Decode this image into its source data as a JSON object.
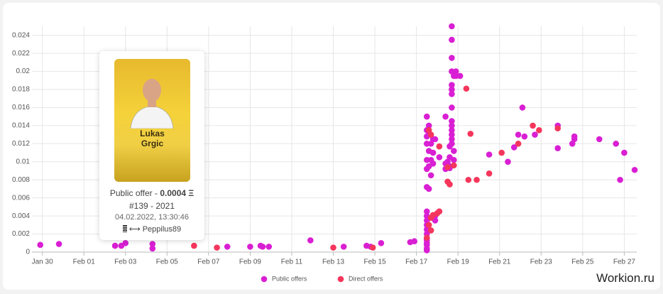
{
  "chart_data": {
    "type": "scatter",
    "xlim": [
      -0.5,
      28.6
    ],
    "ylim": [
      0,
      0.025
    ],
    "xticks": [
      {
        "value": 0,
        "label": "Jan 30"
      },
      {
        "value": 2,
        "label": "Feb 01"
      },
      {
        "value": 4,
        "label": "Feb 03"
      },
      {
        "value": 6,
        "label": "Feb 05"
      },
      {
        "value": 8,
        "label": "Feb 07"
      },
      {
        "value": 10,
        "label": "Feb 09"
      },
      {
        "value": 12,
        "label": "Feb 11"
      },
      {
        "value": 14,
        "label": "Feb 13"
      },
      {
        "value": 16,
        "label": "Feb 15"
      },
      {
        "value": 18,
        "label": "Feb 17"
      },
      {
        "value": 20,
        "label": "Feb 19"
      },
      {
        "value": 22,
        "label": "Feb 21"
      },
      {
        "value": 24,
        "label": "Feb 23"
      },
      {
        "value": 26,
        "label": "Feb 25"
      },
      {
        "value": 28,
        "label": "Feb 27"
      }
    ],
    "yticks": [
      0,
      0.002,
      0.004,
      0.006,
      0.008,
      0.01,
      0.012,
      0.014,
      0.016,
      0.018,
      0.02,
      0.022,
      0.024
    ],
    "grid": true,
    "legend": "bottom",
    "series": [
      {
        "name": "Public offers",
        "color": "#d91fd3",
        "x": [
          -0.1,
          0.8,
          3.5,
          3.8,
          4.0,
          5.3,
          5.3,
          8.9,
          10.0,
          10.5,
          10.6,
          10.9,
          12.9,
          14.5,
          15.6,
          15.8,
          16.3,
          17.7,
          17.9,
          18.5,
          18.5,
          18.5,
          18.5,
          18.5,
          18.5,
          18.5,
          18.5,
          18.5,
          18.5,
          18.5,
          18.5,
          18.5,
          18.5,
          18.5,
          18.5,
          18.5,
          18.5,
          18.5,
          18.6,
          18.6,
          18.6,
          18.6,
          18.6,
          18.7,
          18.7,
          18.7,
          18.8,
          18.8,
          18.8,
          18.9,
          18.9,
          18.9,
          19.1,
          19.1,
          19.4,
          19.4,
          19.4,
          19.5,
          19.6,
          19.6,
          19.6,
          19.6,
          19.7,
          19.7,
          19.7,
          19.7,
          19.7,
          19.7,
          19.7,
          19.7,
          19.7,
          19.7,
          19.7,
          19.7,
          19.7,
          19.7,
          19.8,
          19.8,
          19.8,
          19.9,
          19.9,
          20.1,
          21.5,
          22.4,
          22.7,
          22.9,
          23.1,
          23.2,
          23.7,
          24.8,
          24.8,
          25.5,
          25.6,
          25.6,
          26.8,
          27.6,
          27.8,
          28.0,
          28.5
        ],
        "values": [
          0.0008,
          0.0009,
          0.0007,
          0.0007,
          0.001,
          0.0009,
          0.0004,
          0.0006,
          0.0006,
          0.0007,
          0.0006,
          0.0006,
          0.0013,
          0.0006,
          0.0007,
          0.0006,
          0.001,
          0.0011,
          0.0012,
          0.0002,
          0.0004,
          0.0008,
          0.001,
          0.0013,
          0.0015,
          0.002,
          0.0025,
          0.003,
          0.0035,
          0.004,
          0.0045,
          0.0072,
          0.0092,
          0.0102,
          0.012,
          0.0128,
          0.0135,
          0.015,
          0.0095,
          0.0112,
          0.013,
          0.014,
          0.007,
          0.0085,
          0.0102,
          0.012,
          0.0098,
          0.011,
          0.0125,
          0.0125,
          0.004,
          0.0035,
          0.0105,
          0.0045,
          0.015,
          0.0098,
          0.0092,
          0.01,
          0.0105,
          0.0095,
          0.0093,
          0.0117,
          0.012,
          0.0125,
          0.013,
          0.0135,
          0.014,
          0.0145,
          0.016,
          0.0175,
          0.018,
          0.0185,
          0.02,
          0.0215,
          0.0235,
          0.025,
          0.0195,
          0.0112,
          0.0102,
          0.02,
          0.0195,
          0.0195,
          0.0108,
          0.01,
          0.0116,
          0.013,
          0.016,
          0.0128,
          0.013,
          0.014,
          0.0115,
          0.012,
          0.0128,
          0.0125,
          0.0125,
          0.012,
          0.008,
          0.011,
          0.0091
        ]
      },
      {
        "name": "Direct offers",
        "color": "#f5365c",
        "x": [
          7.3,
          8.4,
          14.0,
          15.9,
          18.5,
          18.7,
          18.6,
          18.7,
          18.8,
          19.0,
          19.1,
          18.6,
          18.7,
          19.1,
          19.5,
          19.6,
          19.5,
          19.8,
          20.4,
          20.6,
          20.5,
          20.9,
          21.5,
          22.1,
          22.9,
          23.6,
          23.9,
          24.8
        ],
        "values": [
          0.0007,
          0.0005,
          0.0005,
          0.0005,
          0.0016,
          0.0024,
          0.003,
          0.0038,
          0.0041,
          0.0043,
          0.0045,
          0.0135,
          0.013,
          0.0117,
          0.0094,
          0.0075,
          0.0078,
          0.0096,
          0.0181,
          0.0131,
          0.008,
          0.008,
          0.0087,
          0.011,
          0.012,
          0.014,
          0.0135,
          0.0137
        ]
      }
    ]
  },
  "tooltip": {
    "card_first_name": "Lukas",
    "card_last_name": "Grgic",
    "offer_label": "Public offer -",
    "price": "0.0004 Ξ",
    "serial": "#139 - 2021",
    "date": "04.02.2022, 13:30:46",
    "owner": "⟷ Peppilus89"
  },
  "watermark": "Workion.ru"
}
